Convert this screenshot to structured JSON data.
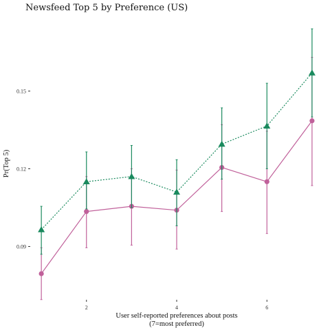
{
  "chart_data": {
    "type": "line",
    "title": "Newsfeed Top 5 by Preference (US)",
    "xlabel_line1": "User self-reported preferences about posts",
    "xlabel_line2": "(7=most preferred)",
    "ylabel": "Pr(Top 5)",
    "x": [
      1,
      2,
      3,
      4,
      5,
      6,
      7
    ],
    "xlim": [
      0.8,
      7.2
    ],
    "ylim": [
      0.0705,
      0.1785
    ],
    "x_ticks": [
      2,
      4,
      6
    ],
    "y_ticks": [
      0.09,
      0.12,
      0.15
    ],
    "y_tick_labels": [
      "0.09",
      "0.12",
      "0.15"
    ],
    "x_tick_labels": [
      "2",
      "4",
      "6"
    ],
    "grid": false,
    "series": [
      {
        "color": "#1a8a5e",
        "marker": "triangle",
        "line_style": "dotted",
        "values": [
          0.0965,
          0.115,
          0.117,
          0.111,
          0.1295,
          0.1365,
          0.157
        ],
        "ci_low": [
          0.087,
          0.1045,
          0.105,
          0.098,
          0.116,
          0.12,
          0.14
        ],
        "ci_high": [
          0.1055,
          0.1265,
          0.129,
          0.1235,
          0.1435,
          0.153,
          0.174
        ]
      },
      {
        "color": "#c0609a",
        "marker": "circle",
        "line_style": "solid",
        "values": [
          0.0795,
          0.1035,
          0.1055,
          0.104,
          0.1205,
          0.115,
          0.1385
        ],
        "ci_low": [
          0.0695,
          0.0895,
          0.0905,
          0.089,
          0.1035,
          0.095,
          0.1135
        ],
        "ci_high": [
          0.0895,
          0.117,
          0.12,
          0.1195,
          0.137,
          0.1345,
          0.163
        ]
      }
    ]
  }
}
